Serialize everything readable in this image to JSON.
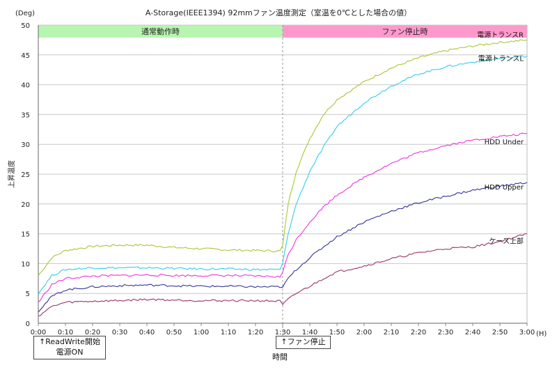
{
  "chart_data": {
    "type": "line",
    "title": "A-Storage(IEEE1394) 92mmファン温度測定（室温を0℃とした場合の値）",
    "xlabel": "時間",
    "ylabel": "上昇温度",
    "y_unit": "(Deg)",
    "x_unit": "(H)",
    "ylim": [
      0,
      50
    ],
    "xlim": [
      "0:00",
      "3:00"
    ],
    "y_ticks": [
      "0",
      "5",
      "10",
      "15",
      "20",
      "25",
      "30",
      "35",
      "40",
      "45",
      "50"
    ],
    "x_ticks": [
      "0:00",
      "0:10",
      "0:20",
      "0:30",
      "0:40",
      "0:50",
      "1:00",
      "1:10",
      "1:20",
      "1:30",
      "1:40",
      "1:50",
      "2:00",
      "2:10",
      "2:20",
      "2:30",
      "2:40",
      "2:50",
      "3:00"
    ],
    "grid": true,
    "phases": [
      {
        "label": "通常動作時",
        "start": "0:00",
        "end": "1:30",
        "color": "#b8f5b0"
      },
      {
        "label": "ファン停止時",
        "start": "1:30",
        "end": "3:00",
        "color": "#ff99cc"
      }
    ],
    "annotations": [
      {
        "text": "↑ReadWrite開始",
        "text2": "電源ON",
        "at": "0:00"
      },
      {
        "text": "↑ファン停止",
        "at": "1:30"
      }
    ],
    "series": [
      {
        "name": "電源トランスR",
        "color": "#a6c832",
        "x": [
          "0:00",
          "0:05",
          "0:10",
          "0:20",
          "0:30",
          "0:40",
          "0:50",
          "1:00",
          "1:10",
          "1:20",
          "1:29",
          "1:30",
          "1:32",
          "1:35",
          "1:40",
          "1:45",
          "1:50",
          "2:00",
          "2:10",
          "2:20",
          "2:30",
          "2:40",
          "2:50",
          "3:00"
        ],
        "values": [
          8,
          11,
          12.2,
          12.9,
          13.1,
          13.1,
          12.7,
          12.5,
          12.3,
          12.2,
          12.1,
          13,
          20,
          25.5,
          31,
          35,
          37.5,
          40.5,
          42.8,
          44.5,
          45.7,
          46.5,
          47.1,
          47.5
        ]
      },
      {
        "name": "電源トランスL",
        "color": "#33ccee",
        "x": [
          "0:00",
          "0:05",
          "0:10",
          "0:20",
          "0:30",
          "0:40",
          "0:50",
          "1:00",
          "1:10",
          "1:20",
          "1:29",
          "1:30",
          "1:32",
          "1:35",
          "1:40",
          "1:45",
          "1:50",
          "2:00",
          "2:10",
          "2:20",
          "2:30",
          "2:40",
          "2:50",
          "3:00"
        ],
        "values": [
          5,
          8,
          9,
          9.3,
          9.3,
          9.3,
          9.2,
          9.1,
          9.1,
          9,
          9,
          10,
          15,
          20,
          25.5,
          29.5,
          33,
          37,
          39.8,
          41.8,
          43,
          43.8,
          44.4,
          44.8
        ]
      },
      {
        "name": "HDD Under",
        "color": "#ee33dd",
        "x": [
          "0:00",
          "0:05",
          "0:10",
          "0:20",
          "0:30",
          "0:40",
          "0:50",
          "1:00",
          "1:10",
          "1:20",
          "1:29",
          "1:30",
          "1:32",
          "1:35",
          "1:40",
          "1:45",
          "1:50",
          "2:00",
          "2:10",
          "2:20",
          "2:30",
          "2:40",
          "2:50",
          "3:00"
        ],
        "values": [
          3.5,
          6.5,
          7.5,
          7.9,
          8,
          8.1,
          8,
          8,
          8,
          7.9,
          7.8,
          8.5,
          11.5,
          14,
          17,
          19.5,
          21.5,
          24.5,
          26.8,
          28.6,
          29.8,
          30.7,
          31.3,
          31.8
        ]
      },
      {
        "name": "HDD Upper",
        "color": "#333399",
        "x": [
          "0:00",
          "0:05",
          "0:10",
          "0:20",
          "0:30",
          "0:40",
          "0:50",
          "1:00",
          "1:10",
          "1:20",
          "1:29",
          "1:30",
          "1:32",
          "1:35",
          "1:40",
          "1:45",
          "1:50",
          "2:00",
          "2:10",
          "2:20",
          "2:30",
          "2:40",
          "2:50",
          "3:00"
        ],
        "values": [
          2,
          4.5,
          5.6,
          6.1,
          6.3,
          6.4,
          6.3,
          6.2,
          6.2,
          6.1,
          6.1,
          6,
          7.5,
          9,
          11,
          12.8,
          14.5,
          17,
          18.8,
          20.2,
          21.3,
          22.3,
          23,
          23.6
        ]
      },
      {
        "name": "ケース上部",
        "color": "#993366",
        "x": [
          "0:00",
          "0:05",
          "0:10",
          "0:20",
          "0:30",
          "0:40",
          "0:50",
          "1:00",
          "1:10",
          "1:20",
          "1:29",
          "1:30",
          "1:32",
          "1:35",
          "1:40",
          "1:45",
          "1:50",
          "2:00",
          "2:10",
          "2:20",
          "2:30",
          "2:40",
          "2:50",
          "3:00"
        ],
        "values": [
          1.2,
          2.8,
          3.5,
          3.7,
          3.8,
          4,
          3.9,
          3.8,
          3.8,
          3.8,
          3.7,
          3.1,
          4,
          5,
          6.2,
          7.5,
          8.6,
          9.6,
          10.8,
          11.8,
          12.5,
          12.8,
          13.7,
          15
        ]
      }
    ]
  }
}
